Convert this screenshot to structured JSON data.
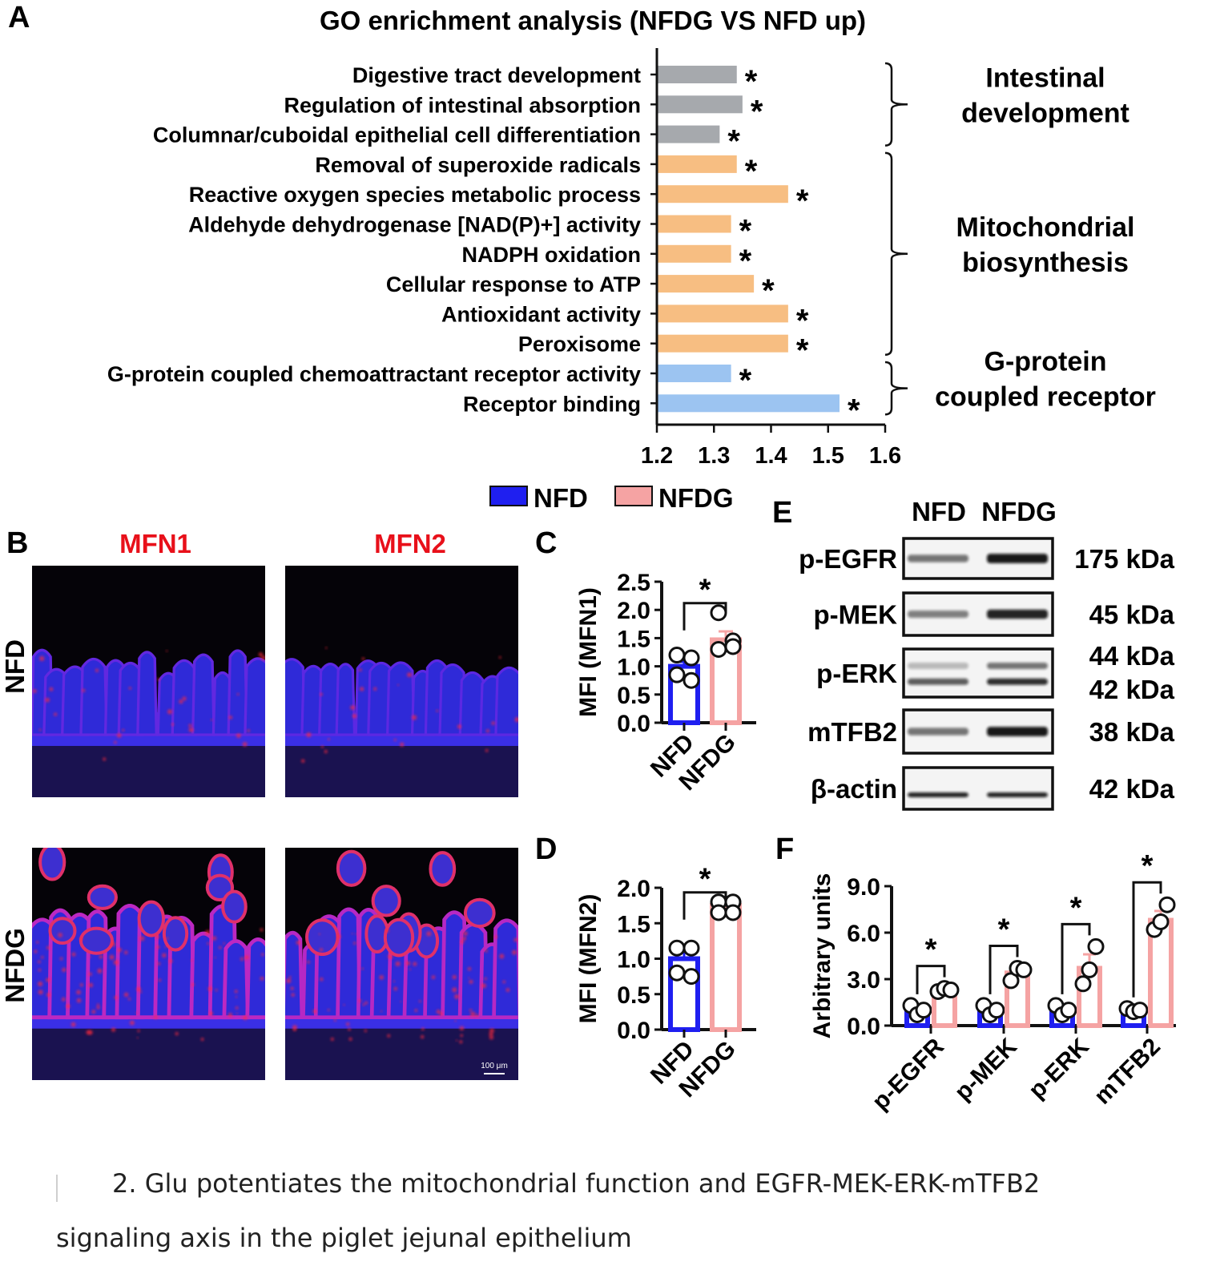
{
  "panels": {
    "A": {
      "letter": "A",
      "chart_data": {
        "type": "bar",
        "orientation": "horizontal",
        "title": "GO enrichment analysis (NFDG VS NFD up)",
        "categories": [
          "Digestive tract development",
          "Regulation of intestinal absorption",
          "Columnar/cuboidal epithelial cell differentiation",
          "Removal of superoxide radicals",
          "Reactive oxygen species metabolic process",
          "Aldehyde dehydrogenase [NAD(P)+] activity",
          "NADPH oxidation",
          "Cellular response to ATP",
          "Antioxidant activity",
          "Peroxisome",
          "G-protein coupled chemoattractant receptor activity",
          "Receptor binding"
        ],
        "values": [
          1.34,
          1.35,
          1.31,
          1.34,
          1.43,
          1.33,
          1.33,
          1.37,
          1.43,
          1.43,
          1.33,
          1.52
        ],
        "bar_groups": [
          0,
          0,
          0,
          1,
          1,
          1,
          1,
          1,
          1,
          1,
          2,
          2
        ],
        "significance": [
          "*",
          "*",
          "*",
          "*",
          "*",
          "*",
          "*",
          "*",
          "*",
          "*",
          "*",
          "*"
        ],
        "xlim": [
          1.2,
          1.6
        ],
        "xticks": [
          "1.2",
          "1.3",
          "1.4",
          "1.5",
          "1.6"
        ],
        "groups": [
          {
            "lines": [
              "Intestinal",
              "development"
            ],
            "color": "#a6a9ad"
          },
          {
            "lines": [
              "Mitochondrial",
              "biosynthesis"
            ],
            "color": "#f7be82"
          },
          {
            "lines": [
              "G-protein",
              "coupled receptor"
            ],
            "color": "#9cc4f1"
          }
        ]
      }
    },
    "legend": [
      {
        "label": "NFD",
        "color": "#1f1ff0"
      },
      {
        "label": "NFDG",
        "color": "#f5a3a3"
      }
    ],
    "B": {
      "letter": "B",
      "col_labels": [
        "MFN1",
        "MFN2"
      ],
      "row_labels": [
        "NFD",
        "NFDG"
      ],
      "scale_bar": "100 μm",
      "label_color": "#e8101a"
    },
    "C": {
      "letter": "C",
      "chart_data": {
        "type": "bar",
        "ylabel": "MFI (MFN1)",
        "categories": [
          "NFD",
          "NFDG"
        ],
        "values": [
          1.0,
          1.47
        ],
        "errors": [
          0.08,
          0.15
        ],
        "points": [
          [
            1.2,
            1.15,
            0.85,
            0.75
          ],
          [
            1.95,
            1.45,
            1.3,
            1.35
          ]
        ],
        "ylim": [
          0,
          2.5
        ],
        "yticks": [
          "0.0",
          "0.5",
          "1.0",
          "1.5",
          "2.0",
          "2.5"
        ],
        "significance": "*"
      }
    },
    "D": {
      "letter": "D",
      "chart_data": {
        "type": "bar",
        "ylabel": "MFI (MFN2)",
        "categories": [
          "NFD",
          "NFDG"
        ],
        "values": [
          1.0,
          1.75
        ],
        "errors": [
          0.09,
          0.05
        ],
        "points": [
          [
            1.15,
            1.15,
            0.8,
            0.75
          ],
          [
            1.8,
            1.8,
            1.65,
            1.65
          ]
        ],
        "ylim": [
          0,
          2.0
        ],
        "yticks": [
          "0.0",
          "0.5",
          "1.0",
          "1.5",
          "2.0"
        ],
        "significance": "*"
      }
    },
    "E": {
      "letter": "E",
      "col_labels": [
        "NFD",
        "NFDG"
      ],
      "rows": [
        {
          "label": "p-EGFR",
          "kda": [
            "175 kDa"
          ]
        },
        {
          "label": "p-MEK",
          "kda": [
            "45 kDa"
          ]
        },
        {
          "label": "p-ERK",
          "kda": [
            "44 kDa",
            "42 kDa"
          ]
        },
        {
          "label": "mTFB2",
          "kda": [
            "38 kDa"
          ]
        },
        {
          "label": "β-actin",
          "kda": [
            "42 kDa"
          ]
        }
      ]
    },
    "F": {
      "letter": "F",
      "chart_data": {
        "type": "bar",
        "ylabel": "Arbitrary units",
        "categories": [
          "p-EGFR",
          "p-MEK",
          "p-ERK",
          "mTFB2"
        ],
        "series": [
          {
            "name": "NFD",
            "values": [
              1.0,
              1.0,
              1.0,
              1.0
            ],
            "errors": [
              0.3,
              0.3,
              0.3,
              0.1
            ],
            "points": [
              [
                1.3,
                0.7,
                1.0
              ],
              [
                1.3,
                0.7,
                1.0
              ],
              [
                1.3,
                0.7,
                1.0
              ],
              [
                1.1,
                0.9,
                1.0
              ]
            ]
          },
          {
            "name": "NFDG",
            "values": [
              2.3,
              3.4,
              3.7,
              6.8
            ],
            "errors": [
              0.1,
              0.3,
              0.9,
              0.6
            ],
            "points": [
              [
                2.2,
                2.4,
                2.3
              ],
              [
                2.9,
                3.7,
                3.6
              ],
              [
                2.7,
                3.6,
                5.1
              ],
              [
                6.2,
                6.7,
                7.8
              ]
            ]
          }
        ],
        "ylim": [
          0,
          9
        ],
        "yticks": [
          "0.0",
          "3.0",
          "6.0",
          "9.0"
        ],
        "significance": [
          "*",
          "*",
          "*",
          "*"
        ]
      }
    }
  },
  "caption": {
    "line1": "2. Glu potentiates the mitochondrial function and EGFR-MEK-ERK-mTFB2",
    "line2": "signaling axis in the piglet jejunal epithelium"
  }
}
